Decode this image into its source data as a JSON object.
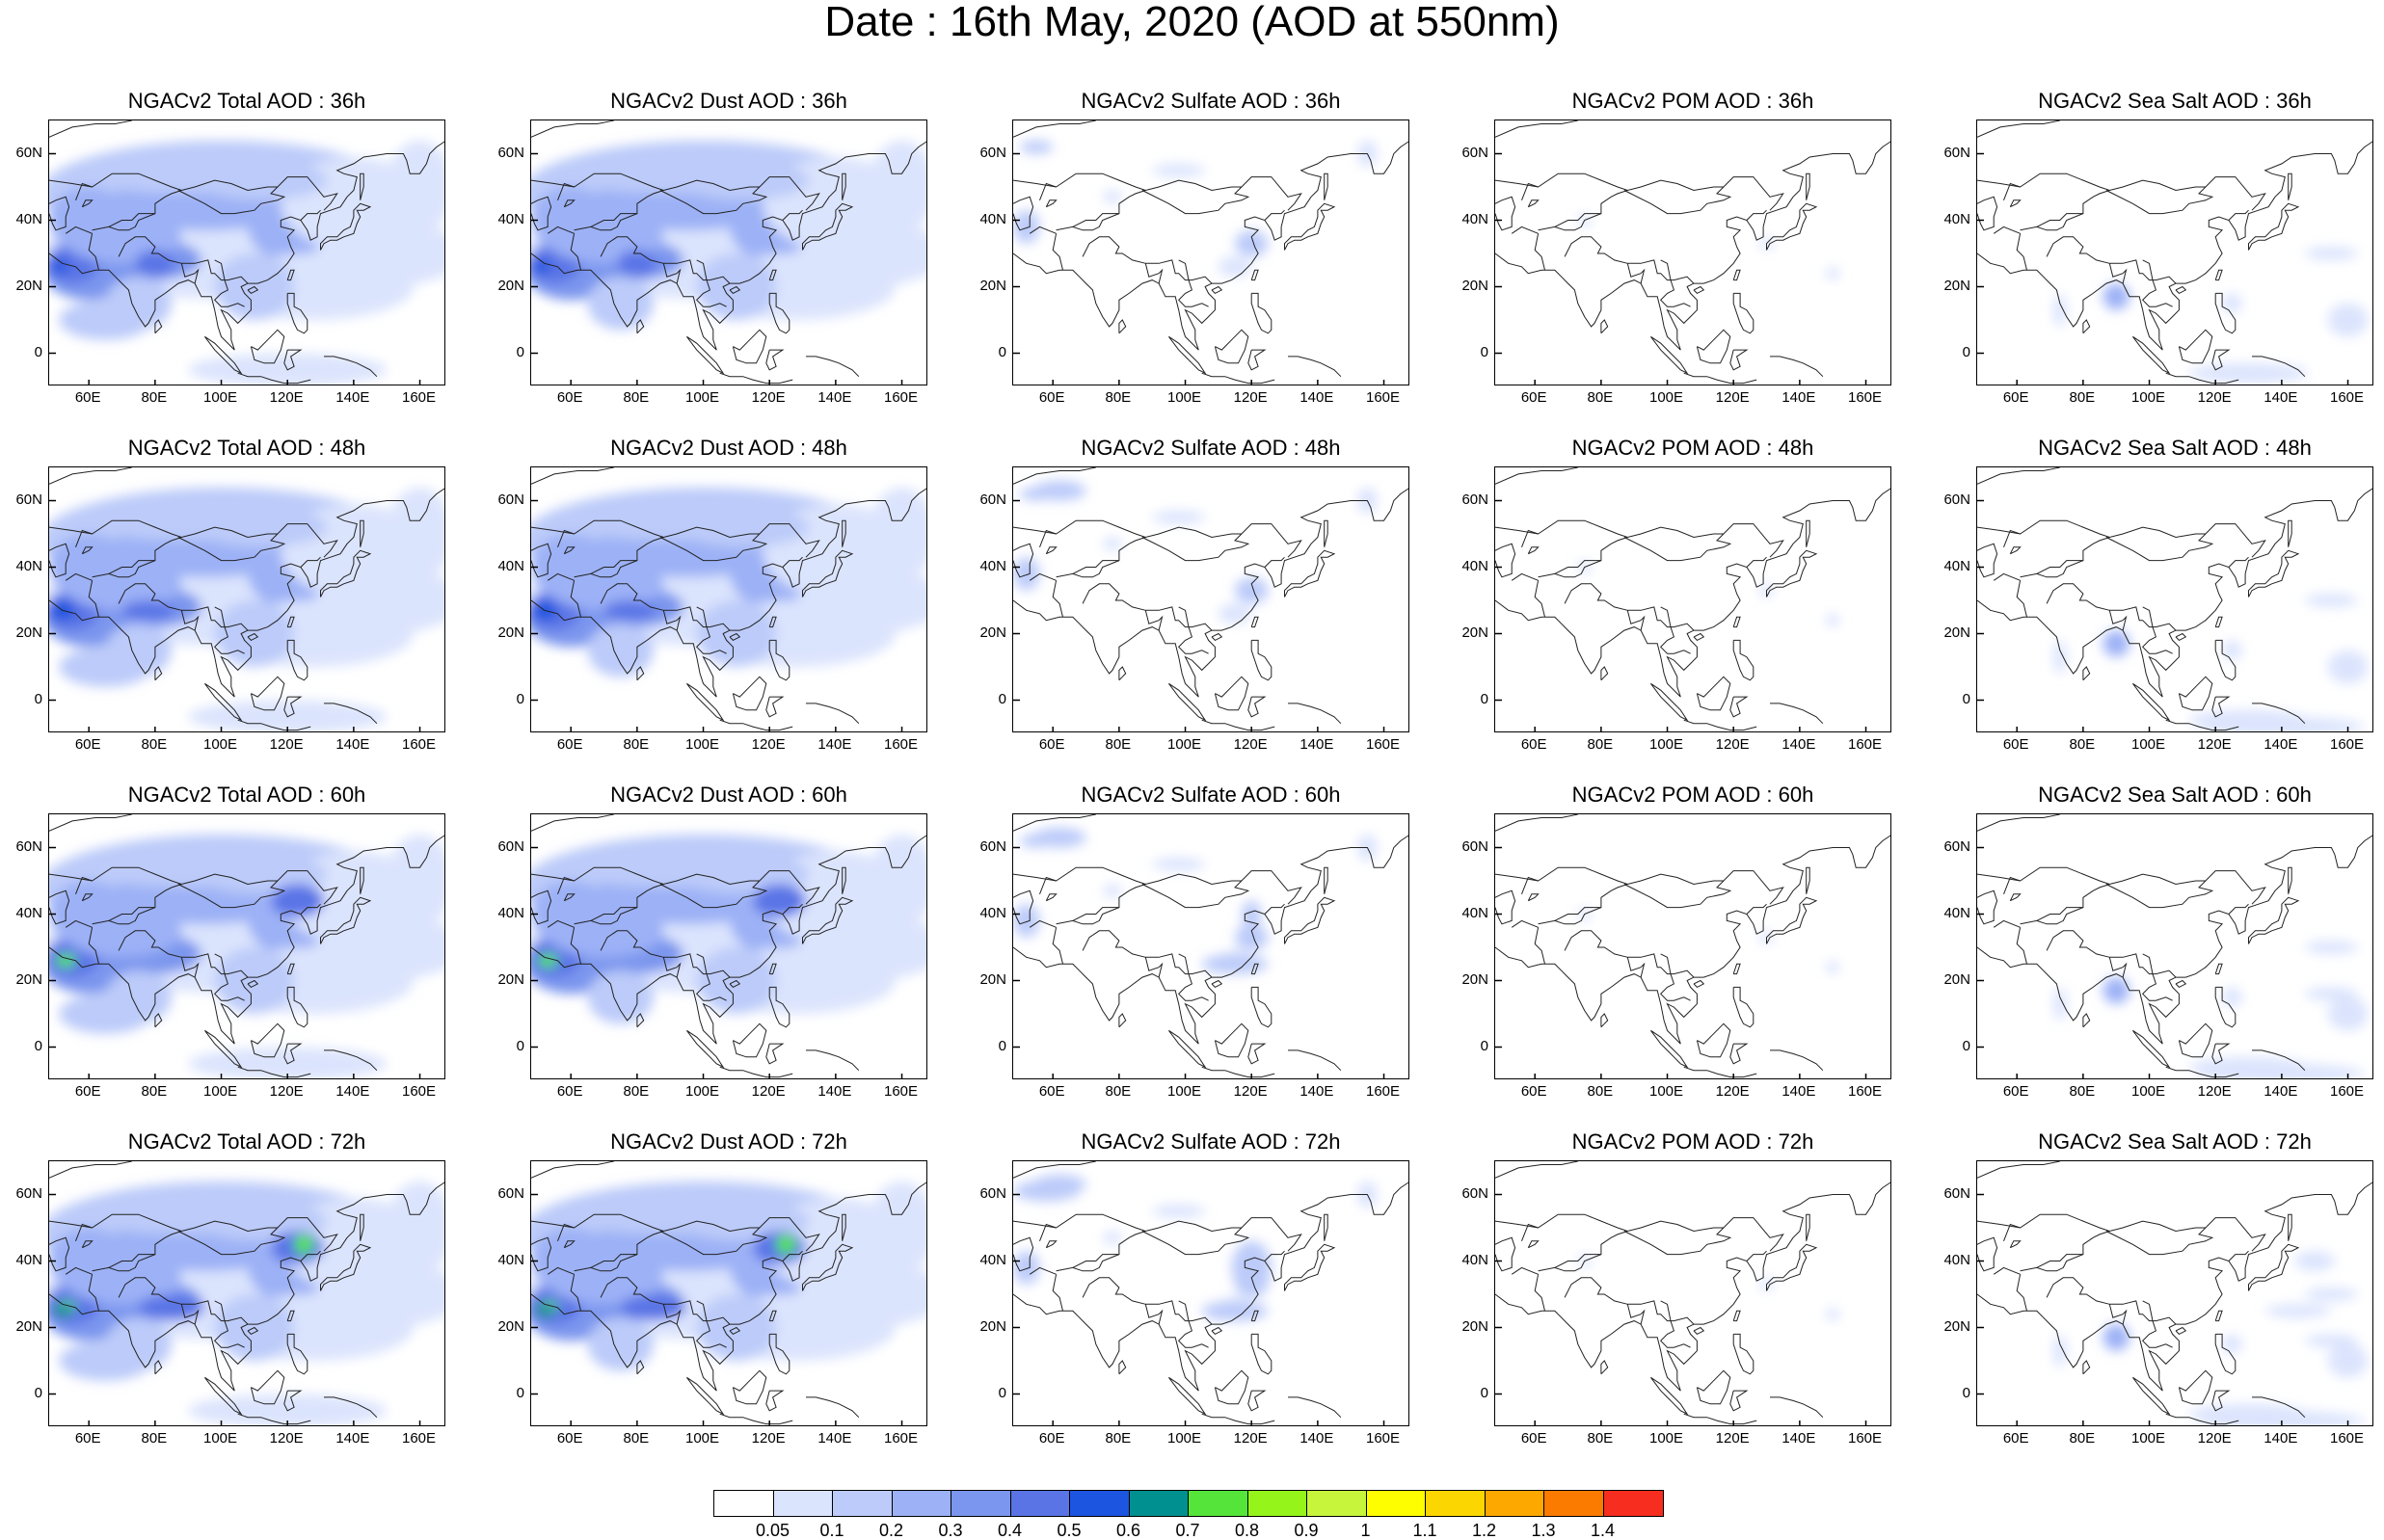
{
  "title": "Date : 16th May, 2020 (AOD at 550nm)",
  "rows": [
    "36h",
    "48h",
    "60h",
    "72h"
  ],
  "columns": [
    {
      "key": "total",
      "titles": [
        "NGACv2 Total AOD : 36h",
        "NGACv2 Total AOD : 48h",
        "NGACv2 Total AOD : 60h",
        "NGACv2 Total AOD : 72h"
      ]
    },
    {
      "key": "dust",
      "titles": [
        "NGACv2 Dust AOD : 36h",
        "NGACv2 Dust AOD : 48h",
        "NGACv2 Dust AOD : 60h",
        "NGACv2 Dust AOD : 72h"
      ]
    },
    {
      "key": "sulfate",
      "titles": [
        "NGACv2 Sulfate AOD : 36h",
        "NGACv2 Sulfate AOD : 48h",
        "NGACv2 Sulfate AOD : 60h",
        "NGACv2 Sulfate AOD : 72h"
      ]
    },
    {
      "key": "pom",
      "titles": [
        "NGACv2 POM AOD : 36h",
        "NGACv2 POM AOD : 48h",
        "NGACv2 POM AOD : 60h",
        "NGACv2 POM AOD : 72h"
      ]
    },
    {
      "key": "seasalt",
      "titles": [
        "NGACv2 Sea Salt AOD : 36h",
        "NGACv2 Sea Salt AOD : 48h",
        "NGACv2 Sea Salt AOD : 60h",
        "NGACv2 Sea Salt  AOD : 72h"
      ]
    }
  ],
  "lat_ticks": [
    "60N",
    "40N",
    "20N",
    "0"
  ],
  "lon_ticks": [
    "60E",
    "80E",
    "100E",
    "120E",
    "140E",
    "160E"
  ],
  "colorbar": {
    "colors": [
      "#ffffff",
      "#dbe4fd",
      "#bccbf9",
      "#9cb1f6",
      "#7b96ee",
      "#5a74e6",
      "#1c55e0",
      "#009090",
      "#55e53a",
      "#95f51a",
      "#c6f53c",
      "#fefe00",
      "#fcd600",
      "#fca800",
      "#fb7b00",
      "#f62d1f"
    ],
    "labels": [
      "0.05",
      "0.1",
      "0.2",
      "0.3",
      "0.4",
      "0.5",
      "0.6",
      "0.7",
      "0.8",
      "0.9",
      "1",
      "1.1",
      "1.2",
      "1.3",
      "1.4"
    ]
  }
}
